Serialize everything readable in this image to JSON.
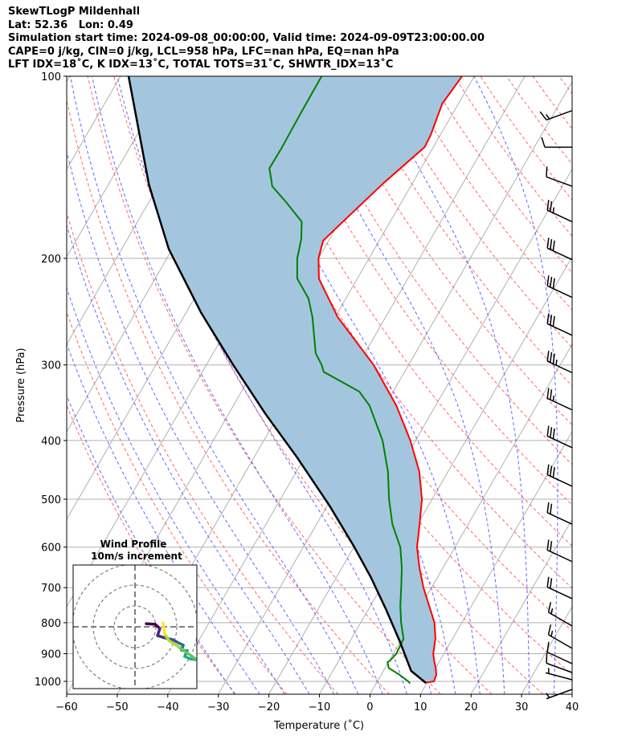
{
  "header": {
    "title": "SkewTLogP Mildenhall",
    "location": "Lat: 52.36   Lon: 0.49",
    "times": "Simulation start time: 2024-09-08_00:00:00, Valid time: 2024-09-09T23:00:00.00",
    "indices1": "CAPE=0 j/kg, CIN=0 j/kg, LCL=958 hPa, LFC=nan hPa, EQ=nan hPa",
    "indices2": "LFT IDX=18˚C, K IDX=13˚C, TOTAL TOTS=31˚C, SHWTR_IDX=13˚C"
  },
  "chart_data": {
    "type": "line",
    "title": "SkewTLogP Mildenhall",
    "xlabel": "Temperature (˚C)",
    "ylabel": "Pressure (hPa)",
    "xlim": [
      -60,
      40
    ],
    "ylim": [
      1050,
      100
    ],
    "xticks": [
      -60,
      -50,
      -40,
      -30,
      -20,
      -10,
      0,
      10,
      20,
      30,
      40
    ],
    "yticks": [
      100,
      200,
      300,
      400,
      500,
      600,
      700,
      800,
      900,
      1000
    ],
    "grid": true,
    "colors": {
      "temperature": "#ff0000",
      "dewpoint": "#008000",
      "parcel": "#000000",
      "cin_fill": "#a3c6de",
      "isotherm": "#b0b0b0",
      "dry_adiabat": "#ff6666",
      "moist_adiabat": "#6666ff"
    },
    "series": [
      {
        "name": "temperature",
        "points": [
          [
            1005,
            9.7
          ],
          [
            1000,
            11.2
          ],
          [
            975,
            10.9
          ],
          [
            950,
            10.0
          ],
          [
            925,
            8.9
          ],
          [
            900,
            7.9
          ],
          [
            850,
            6.6
          ],
          [
            800,
            4.6
          ],
          [
            750,
            1.6
          ],
          [
            700,
            -1.6
          ],
          [
            650,
            -4.6
          ],
          [
            600,
            -7.5
          ],
          [
            550,
            -9.6
          ],
          [
            500,
            -12.0
          ],
          [
            450,
            -15.7
          ],
          [
            400,
            -21.0
          ],
          [
            350,
            -27.8
          ],
          [
            300,
            -36.9
          ],
          [
            250,
            -49.5
          ],
          [
            216,
            -57.6
          ],
          [
            200,
            -60.0
          ],
          [
            187,
            -61.1
          ],
          [
            175,
            -59.5
          ],
          [
            150,
            -55.7
          ],
          [
            131,
            -51.7
          ],
          [
            125,
            -51.9
          ],
          [
            111,
            -53.2
          ],
          [
            100,
            -52.4
          ]
        ]
      },
      {
        "name": "dewpoint",
        "points": [
          [
            1008,
            6.7
          ],
          [
            1000,
            6.1
          ],
          [
            975,
            3.6
          ],
          [
            950,
            0.7
          ],
          [
            929,
            -0.2
          ],
          [
            925,
            0.1
          ],
          [
            900,
            0.6
          ],
          [
            850,
            0.3
          ],
          [
            800,
            -2.0
          ],
          [
            750,
            -4.1
          ],
          [
            700,
            -6.0
          ],
          [
            650,
            -8.1
          ],
          [
            600,
            -10.8
          ],
          [
            550,
            -15.0
          ],
          [
            500,
            -18.5
          ],
          [
            450,
            -21.9
          ],
          [
            400,
            -26.5
          ],
          [
            350,
            -33.1
          ],
          [
            332,
            -36.7
          ],
          [
            308,
            -46.0
          ],
          [
            300,
            -47.2
          ],
          [
            287,
            -49.7
          ],
          [
            250,
            -54.5
          ],
          [
            233,
            -57.4
          ],
          [
            216,
            -61.9
          ],
          [
            200,
            -64.2
          ],
          [
            186,
            -65.6
          ],
          [
            174,
            -67.5
          ],
          [
            162,
            -72.6
          ],
          [
            152,
            -77.4
          ],
          [
            142,
            -80.0
          ],
          [
            132,
            -79.9
          ],
          [
            115,
            -80.1
          ],
          [
            100,
            -80.2
          ]
        ]
      },
      {
        "name": "parcel",
        "points": [
          [
            1006,
            9.8
          ],
          [
            961,
            5.5
          ],
          [
            861,
            0.0
          ],
          [
            762,
            -6.4
          ],
          [
            674,
            -13.1
          ],
          [
            597,
            -20.2
          ],
          [
            512,
            -29.6
          ],
          [
            427,
            -41.4
          ],
          [
            361,
            -52.8
          ],
          [
            300,
            -64.7
          ],
          [
            246,
            -77.0
          ],
          [
            193,
            -90.7
          ],
          [
            151,
            -102.0
          ],
          [
            100,
            -118.4
          ]
        ]
      }
    ],
    "wind_barbs": [
      {
        "p": 114,
        "dir": 250,
        "speed_kt": 15
      },
      {
        "p": 131,
        "dir": 270,
        "speed_kt": 10
      },
      {
        "p": 152,
        "dir": 290,
        "speed_kt": 10
      },
      {
        "p": 174,
        "dir": 295,
        "speed_kt": 25
      },
      {
        "p": 201,
        "dir": 295,
        "speed_kt": 30
      },
      {
        "p": 232,
        "dir": 295,
        "speed_kt": 30
      },
      {
        "p": 268,
        "dir": 295,
        "speed_kt": 30
      },
      {
        "p": 309,
        "dir": 295,
        "speed_kt": 35
      },
      {
        "p": 356,
        "dir": 295,
        "speed_kt": 25
      },
      {
        "p": 411,
        "dir": 295,
        "speed_kt": 30
      },
      {
        "p": 476,
        "dir": 295,
        "speed_kt": 30
      },
      {
        "p": 550,
        "dir": 295,
        "speed_kt": 20
      },
      {
        "p": 634,
        "dir": 295,
        "speed_kt": 20
      },
      {
        "p": 730,
        "dir": 295,
        "speed_kt": 20
      },
      {
        "p": 810,
        "dir": 300,
        "speed_kt": 15
      },
      {
        "p": 882,
        "dir": 300,
        "speed_kt": 15
      },
      {
        "p": 935,
        "dir": 295,
        "speed_kt": 10
      },
      {
        "p": 967,
        "dir": 290,
        "speed_kt": 10
      },
      {
        "p": 994,
        "dir": 285,
        "speed_kt": 5
      },
      {
        "p": 1031,
        "dir": 250,
        "speed_kt": 5
      }
    ],
    "hodograph": {
      "title": "Wind Profile",
      "subtitle": "10m/s increment",
      "rings_ms": [
        10,
        20,
        30
      ],
      "u": [
        5.4,
        9.6,
        11.9,
        10.8,
        14.6,
        18.1,
        20.8,
        23.1,
        22.3,
        25.0,
        23.8,
        26.5,
        29.6,
        25.8,
        20.8,
        16.2,
        14.2,
        13.5
      ],
      "v": [
        1.5,
        1.2,
        -0.8,
        -4.2,
        -5.4,
        -6.2,
        -7.7,
        -8.8,
        -11.2,
        -11.5,
        -14.2,
        -15.4,
        -15.8,
        -13.1,
        -9.6,
        -6.5,
        -3.5,
        1.9
      ]
    }
  }
}
